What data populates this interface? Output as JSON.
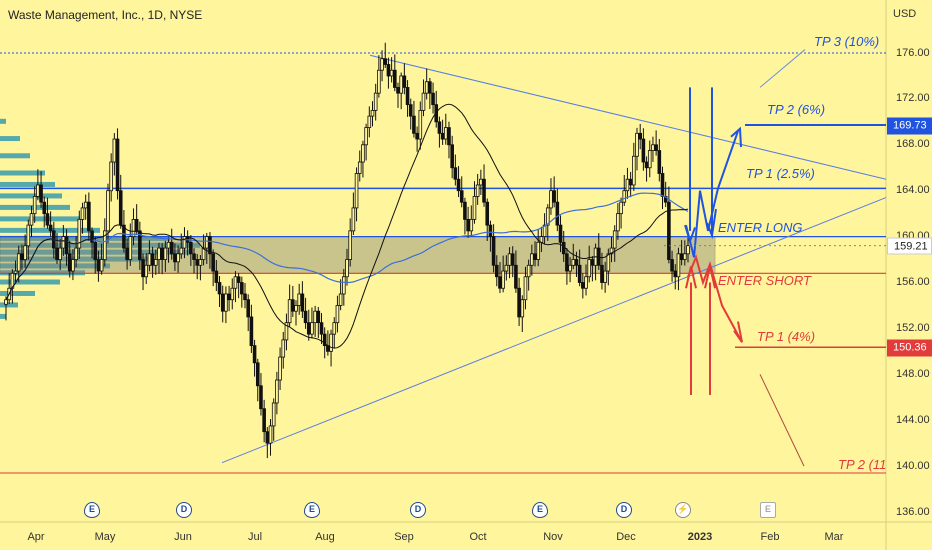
{
  "chart_data": {
    "type": "candlestick",
    "title": "Waste Management, Inc., 1D, NYSE",
    "ylabel": "USD",
    "ylim": [
      135,
      179
    ],
    "ytick_labels": [
      "176.00",
      "172.00",
      "168.00",
      "164.00",
      "160.00",
      "156.00",
      "152.00",
      "148.00",
      "144.00",
      "140.00",
      "136.00"
    ],
    "xtick_labels": [
      "Apr",
      "May",
      "Jun",
      "Jul",
      "Aug",
      "Sep",
      "Oct",
      "Nov",
      "Dec",
      "2023",
      "Feb",
      "Mar"
    ],
    "price_tags": [
      {
        "text": "169.73",
        "value": 169.73
      },
      {
        "text": "159.21",
        "value": 159.21
      },
      {
        "text": "150.36",
        "value": 150.36
      }
    ],
    "annotations": [
      "TP 3 (10%)",
      "TP 2 (6%)",
      "TP 1 (2.5%)",
      "ENTER LONG",
      "ENTER SHORT",
      "TP 1 (4%)",
      "TP 2 (11"
    ],
    "events": [
      "E",
      "D",
      "E",
      "D",
      "E",
      "D",
      "⚡",
      "E"
    ],
    "levels": [
      {
        "name": "TP 3",
        "value": 176.0
      },
      {
        "name": "TP 2 long",
        "value": 169.73
      },
      {
        "name": "TP 1 long",
        "value": 164.2
      },
      {
        "name": "Enter long",
        "value": 160.0
      },
      {
        "name": "Enter short",
        "value": 156.8
      },
      {
        "name": "TP 1 short",
        "value": 150.36
      },
      {
        "name": "TP 2 short",
        "value": 139.4
      }
    ],
    "zone": [
      156.8,
      160.0
    ],
    "colors": {
      "background": "#fff59d",
      "candle": "#111111",
      "blue": "#1f53e0",
      "red": "#e23b3b",
      "ma_long": "#3b6fd8",
      "ma_short": "#111111",
      "volume_profile": "#1e8fb0"
    },
    "close": [
      154.5,
      155.5,
      156.8,
      157.0,
      158.5,
      158.0,
      159.2,
      161.0,
      162.0,
      163.5,
      164.5,
      163.0,
      162.0,
      161.0,
      160.5,
      159.0,
      158.0,
      159.0,
      160.0,
      158.5,
      157.0,
      158.0,
      159.0,
      161.5,
      162.5,
      163.0,
      160.5,
      159.5,
      158.0,
      157.0,
      158.0,
      160.5,
      164.0,
      166.5,
      168.5,
      164.0,
      161.0,
      159.0,
      158.0,
      160.0,
      161.5,
      160.5,
      158.0,
      156.5,
      157.5,
      158.5,
      157.5,
      158.0,
      159.0,
      158.0,
      159.0,
      159.5,
      158.5,
      157.8,
      158.5,
      159.0,
      160.0,
      159.5,
      158.5,
      158.0,
      157.5,
      158.0,
      159.0,
      160.0,
      158.5,
      157.0,
      156.0,
      155.0,
      153.5,
      155.0,
      154.5,
      155.5,
      156.5,
      156.0,
      155.0,
      154.5,
      153.0,
      150.5,
      149.0,
      147.0,
      145.0,
      143.0,
      142.0,
      143.5,
      145.5,
      147.5,
      149.5,
      151.0,
      152.5,
      154.5,
      153.5,
      154.0,
      155.0,
      153.5,
      152.5,
      151.5,
      152.5,
      153.5,
      152.5,
      151.5,
      150.5,
      150.0,
      151.5,
      152.5,
      154.0,
      155.0,
      156.5,
      158.0,
      160.5,
      162.5,
      165.5,
      166.5,
      168.0,
      169.5,
      170.5,
      171.0,
      172.5,
      174.5,
      175.5,
      175.0,
      174.0,
      174.5,
      173.0,
      172.5,
      174.0,
      173.0,
      171.5,
      170.5,
      169.0,
      168.5,
      171.0,
      172.5,
      173.5,
      172.5,
      171.5,
      170.0,
      169.0,
      168.5,
      169.5,
      168.0,
      166.0,
      165.0,
      164.0,
      163.0,
      161.5,
      160.5,
      161.5,
      163.5,
      164.5,
      165.0,
      163.0,
      161.0,
      160.0,
      157.5,
      156.5,
      155.5,
      157.0,
      157.5,
      158.5,
      157.5,
      155.5,
      153.0,
      154.5,
      156.5,
      157.5,
      158.5,
      158.0,
      159.5,
      160.0,
      161.0,
      162.5,
      164.0,
      163.0,
      161.0,
      159.5,
      158.5,
      157.0,
      157.5,
      158.0,
      157.5,
      156.0,
      155.5,
      156.5,
      158.0,
      157.5,
      159.0,
      157.5,
      156.0,
      157.0,
      158.5,
      159.0,
      160.5,
      162.0,
      163.0,
      164.0,
      165.0,
      164.5,
      167.0,
      169.0,
      168.5,
      166.5,
      166.0,
      167.5,
      168.0,
      167.5,
      165.5,
      163.5,
      163.0,
      158.0,
      157.0,
      156.5,
      158.5,
      158.0,
      158.5,
      159.21
    ]
  }
}
